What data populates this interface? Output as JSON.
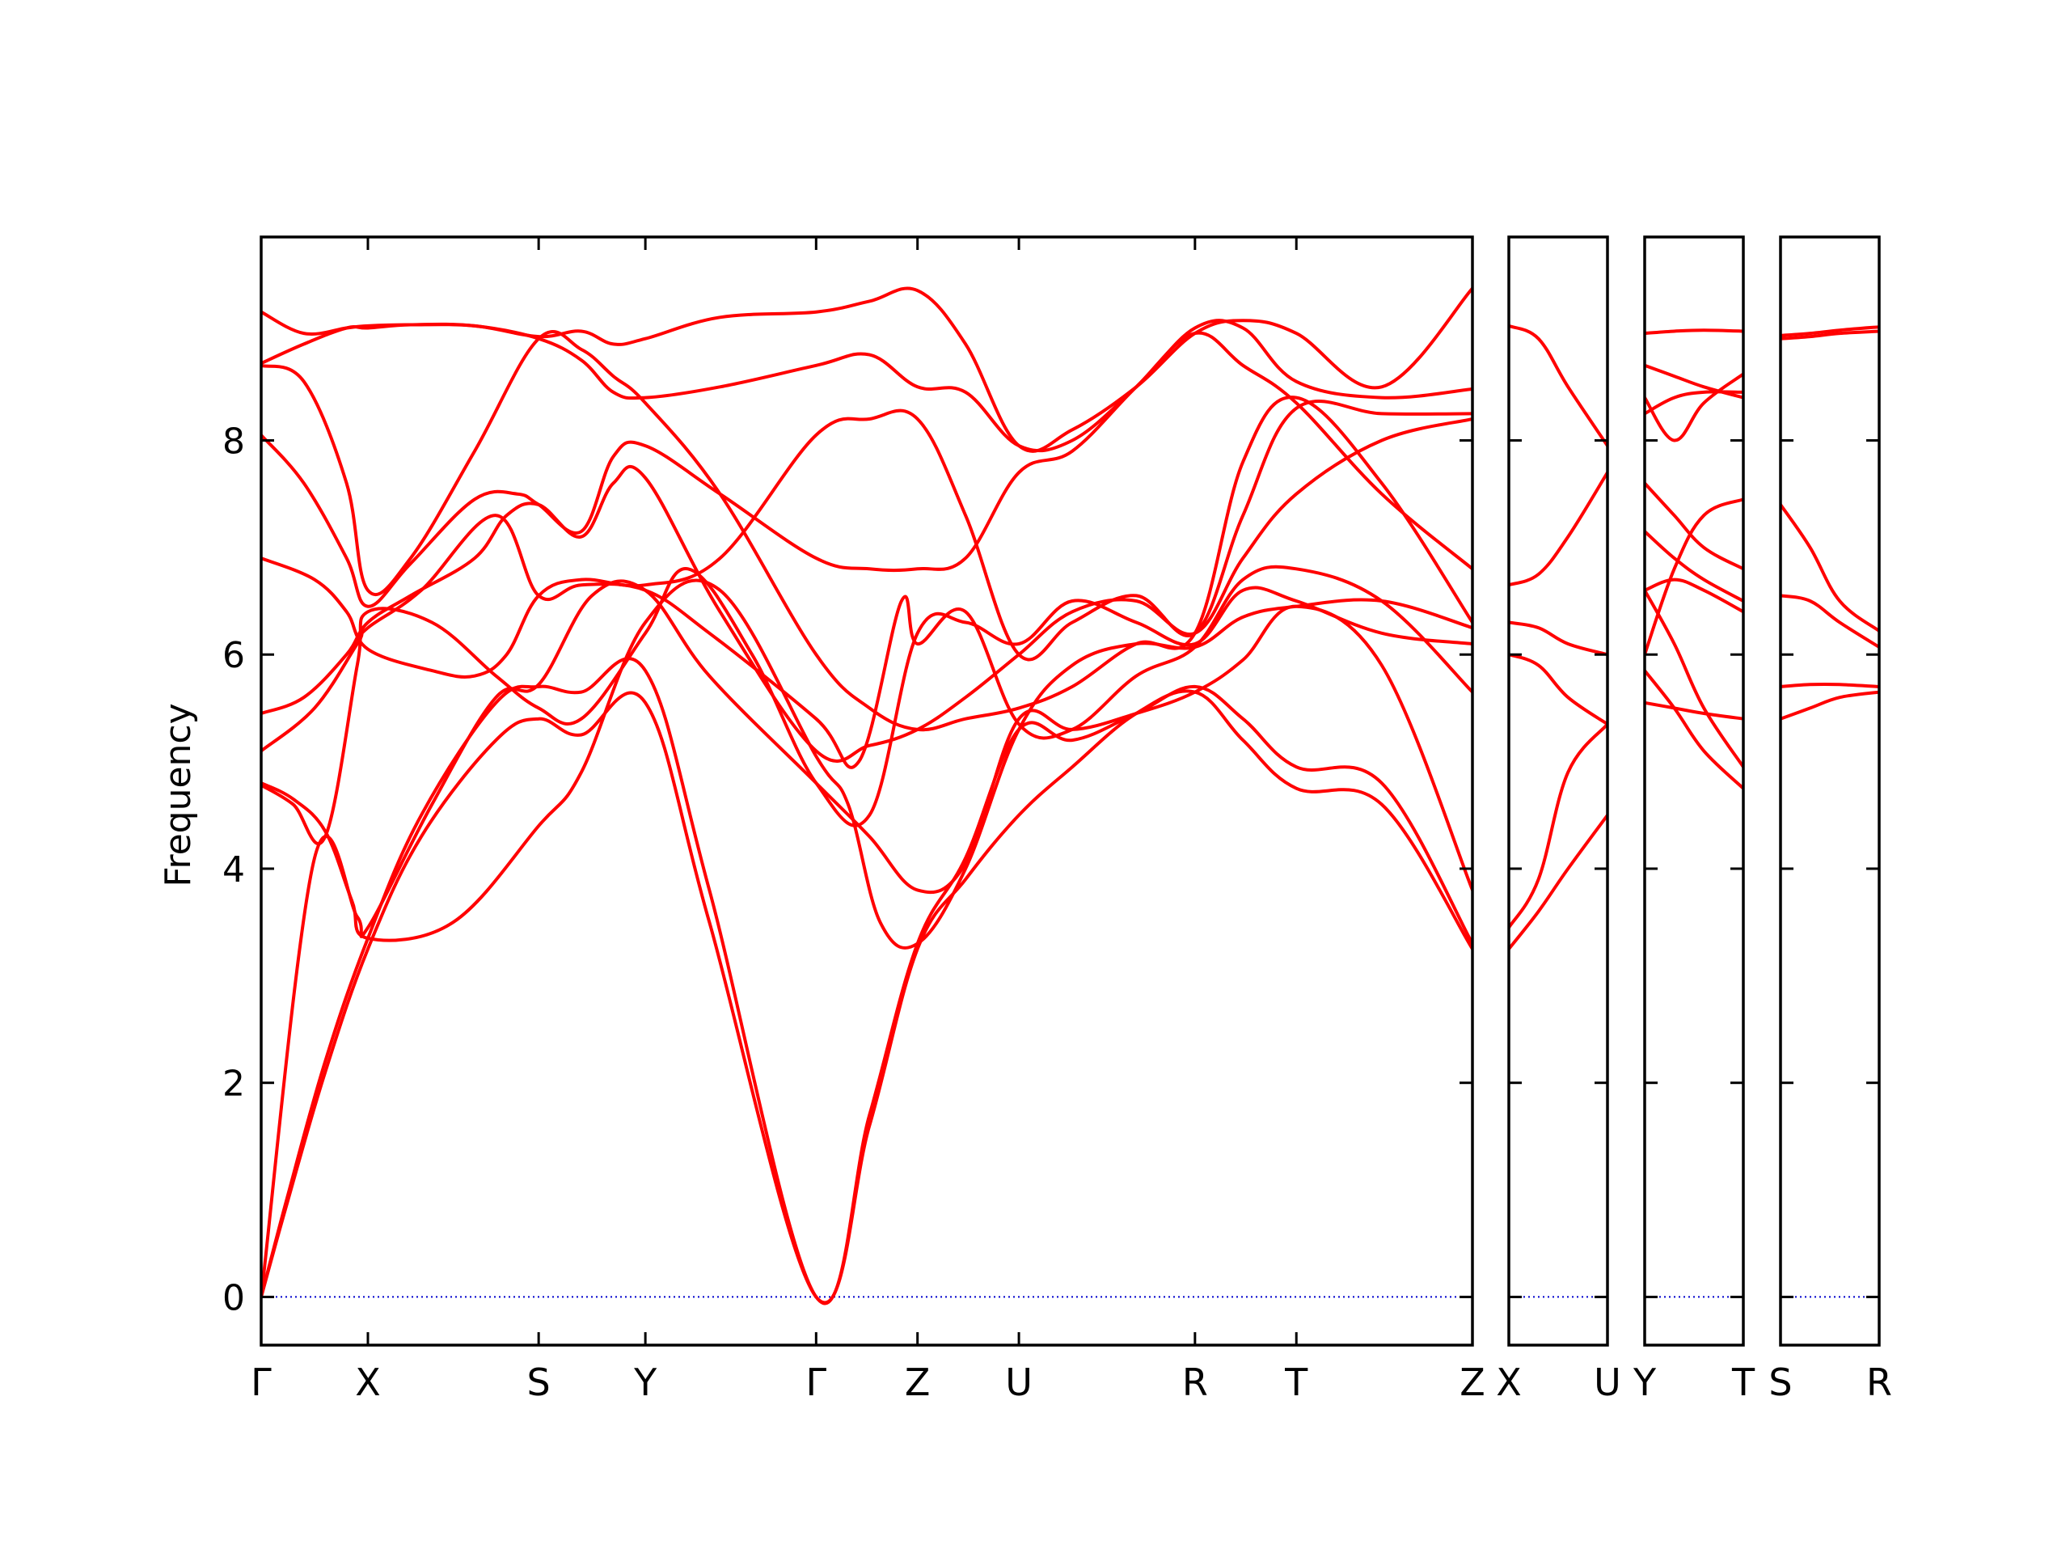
{
  "chart_data": {
    "type": "line",
    "title": "",
    "xlabel": "",
    "ylabel": "Frequency",
    "ylim": [
      -0.45,
      9.9
    ],
    "yticks": [
      0,
      2,
      4,
      6,
      8
    ],
    "line_color": "#ff0000",
    "zero_line_color": "#0000cc",
    "panels": [
      {
        "kpoints": [
          "Γ",
          "X",
          "S",
          "Y",
          "Γ",
          "Z",
          "U",
          "R",
          "T",
          "Z"
        ],
        "kpoint_positions": [
          0,
          1,
          2.6,
          3.6,
          5.2,
          6.15,
          7.1,
          8.75,
          9.7,
          11.35
        ],
        "branches": [
          {
            "x": [
              0,
              0.25,
              0.6,
              1,
              1.5,
              2.2,
              2.6,
              3,
              3.6,
              4.2,
              5.2,
              5.7,
              6.15,
              6.6,
              7.1,
              7.6,
              8.2,
              8.75,
              9.2,
              9.7,
              10.5,
              11.35
            ],
            "y": [
              0,
              0.9,
              2.1,
              3.25,
              4.3,
              5.2,
              5.4,
              5.25,
              5.55,
              3.5,
              0,
              1.6,
              3.25,
              3.9,
              4.5,
              4.95,
              5.45,
              5.65,
              5.2,
              4.75,
              4.6,
              3.25
            ]
          },
          {
            "x": [
              0,
              0.25,
              0.6,
              1,
              1.5,
              2.2,
              2.6,
              3,
              3.6,
              4.2,
              5.2,
              5.7,
              6.15,
              6.6,
              7.1,
              7.6,
              8.2,
              8.75,
              9.2,
              9.7,
              10.5,
              11.35
            ],
            "y": [
              0,
              0.95,
              2.2,
              3.35,
              4.5,
              5.55,
              5.7,
              5.65,
              5.85,
              3.8,
              0,
              1.7,
              3.3,
              4.1,
              5.3,
              5.2,
              5.45,
              5.7,
              5.4,
              4.95,
              4.8,
              3.3
            ]
          },
          {
            "x": [
              0,
              0.5,
              0.9,
              1,
              1.6,
              2.2,
              2.6,
              3.1,
              3.6,
              4.2,
              5.2,
              5.7,
              6.15,
              6.6,
              7.1,
              7.6,
              8.2,
              8.75,
              9.2,
              9.7,
              10.5,
              11.35
            ],
            "y": [
              0,
              4.1,
              3.55,
              3.45,
              4.6,
              5.6,
              5.72,
              6.55,
              6.6,
              5.8,
              4.8,
              4.3,
              3.8,
              4.05,
              5.4,
              5.3,
              5.45,
              5.65,
              5.95,
              6.45,
              5.9,
              3.8
            ]
          },
          {
            "x": [
              0,
              0.3,
              0.6,
              0.85,
              1,
              1.8,
              2.6,
              3.0,
              3.6,
              4.3,
              5.2,
              5.5,
              5.8,
              6.15,
              6.6,
              7.1,
              7.6,
              8.2,
              8.75,
              9.2,
              9.7,
              10.5,
              11.35
            ],
            "y": [
              4.8,
              4.65,
              4.35,
              3.7,
              3.35,
              3.5,
              4.4,
              4.9,
              6.3,
              6.6,
              5.05,
              4.6,
              3.5,
              3.3,
              4.0,
              5.3,
              5.9,
              6.1,
              6.07,
              6.35,
              6.45,
              6.5,
              6.25
            ]
          },
          {
            "x": [
              0,
              0.3,
              0.6,
              0.9,
              1,
              1.6,
              2.2,
              2.6,
              3.0,
              3.6,
              4.0,
              4.6,
              5.2,
              5.7,
              6.15,
              6.6,
              7.1,
              7.6,
              8.2,
              8.75,
              9.2,
              9.7,
              10.5,
              11.35
            ],
            "y": [
              4.78,
              4.6,
              4.3,
              5.9,
              6.4,
              6.3,
              5.8,
              5.5,
              5.4,
              6.2,
              6.8,
              6.0,
              4.8,
              4.5,
              6.2,
              6.3,
              6.1,
              6.5,
              6.3,
              6.1,
              6.6,
              6.5,
              6.2,
              6.1
            ]
          },
          {
            "x": [
              0,
              0.5,
              0.9,
              1,
              1.5,
              2.2,
              2.6,
              3.0,
              3.6,
              4.2,
              5.2,
              5.6,
              6.0,
              6.15,
              6.6,
              7.1,
              7.6,
              8.2,
              8.75,
              9.2,
              9.7,
              10.5,
              11.35
            ],
            "y": [
              5.1,
              5.5,
              6.1,
              6.25,
              6.6,
              7.3,
              6.55,
              6.65,
              6.6,
              6.2,
              5.4,
              5.0,
              6.5,
              6.1,
              6.4,
              5.35,
              5.3,
              5.8,
              6.07,
              6.7,
              6.8,
              6.5,
              5.65
            ]
          },
          {
            "x": [
              0,
              0.4,
              0.8,
              1,
              1.4,
              2.0,
              2.3,
              2.6,
              3.0,
              3.3,
              3.6,
              4.3,
              5.2,
              5.7,
              6.15,
              6.6,
              7.1,
              7.6,
              8.2,
              8.75,
              9.2,
              9.7,
              10.5,
              11.35
            ],
            "y": [
              5.45,
              5.6,
              6.0,
              6.3,
              6.55,
              6.9,
              7.3,
              7.4,
              7.1,
              7.6,
              7.65,
              6.4,
              5.1,
              5.15,
              5.3,
              5.6,
              6.0,
              6.4,
              6.5,
              6.2,
              6.9,
              7.5,
              8.0,
              8.2
            ]
          },
          {
            "x": [
              0,
              0.5,
              0.8,
              1,
              1.6,
              2.0,
              2.3,
              2.6,
              3.0,
              3.6,
              4.3,
              5.2,
              5.7,
              6.15,
              6.6,
              7.1,
              7.6,
              8.2,
              8.75,
              9.2,
              9.7,
              10.5,
              11.35
            ],
            "y": [
              6.9,
              6.7,
              6.4,
              6.05,
              5.85,
              5.8,
              6.0,
              6.55,
              6.7,
              6.65,
              6.9,
              8.05,
              8.2,
              8.2,
              7.3,
              6.0,
              6.3,
              6.55,
              6.2,
              7.3,
              8.3,
              8.25,
              8.25
            ]
          },
          {
            "x": [
              0,
              0.4,
              0.8,
              1,
              1.4,
              2.0,
              2.4,
              2.6,
              3.0,
              3.3,
              3.6,
              4.3,
              5.2,
              5.7,
              6.15,
              6.6,
              7.1,
              7.6,
              8.2,
              8.75,
              9.2,
              9.7,
              10.5,
              11.35
            ],
            "y": [
              8.05,
              7.6,
              6.9,
              6.45,
              6.85,
              7.45,
              7.5,
              7.4,
              7.15,
              7.85,
              7.95,
              7.5,
              6.9,
              6.8,
              6.8,
              6.9,
              7.7,
              7.9,
              8.5,
              9.0,
              8.7,
              8.35,
              7.5,
              6.8
            ]
          },
          {
            "x": [
              0,
              0.4,
              0.8,
              1,
              1.4,
              2.0,
              2.6,
              3.0,
              3.3,
              3.6,
              4.3,
              5.2,
              5.7,
              6.15,
              6.6,
              7.1,
              7.6,
              8.2,
              8.75,
              9.2,
              9.7,
              10.5,
              11.35
            ],
            "y": [
              8.7,
              8.55,
              7.6,
              6.6,
              6.9,
              7.9,
              8.95,
              8.85,
              8.6,
              8.35,
              7.5,
              6.0,
              5.5,
              5.3,
              5.4,
              5.5,
              5.7,
              6.1,
              6.2,
              7.8,
              8.4,
              7.6,
              6.3
            ]
          },
          {
            "x": [
              0,
              0.4,
              0.8,
              1,
              1.4,
              2.0,
              2.6,
              3.0,
              3.3,
              3.6,
              4.3,
              5.2,
              5.7,
              6.15,
              6.6,
              7.1,
              7.6,
              8.2,
              8.75,
              9.2,
              9.7,
              10.5,
              11.35
            ],
            "y": [
              8.72,
              8.9,
              9.05,
              9.05,
              9.08,
              9.07,
              8.95,
              8.75,
              8.45,
              8.4,
              8.5,
              8.7,
              8.8,
              8.5,
              8.45,
              7.95,
              8.0,
              8.5,
              9.05,
              9.05,
              8.55,
              8.4,
              8.48
            ]
          },
          {
            "x": [
              0,
              0.4,
              0.8,
              1,
              1.4,
              2.0,
              2.6,
              3.0,
              3.3,
              3.6,
              4.3,
              5.2,
              5.7,
              6.15,
              6.6,
              7.1,
              7.6,
              8.2,
              8.75,
              9.2,
              9.7,
              10.5,
              11.35
            ],
            "y": [
              9.2,
              9.0,
              9.05,
              9.07,
              9.08,
              9.07,
              8.97,
              9.02,
              8.9,
              8.95,
              9.15,
              9.2,
              9.3,
              9.4,
              8.9,
              7.95,
              8.1,
              8.5,
              9.0,
              9.12,
              9.0,
              8.5,
              9.42
            ]
          }
        ]
      },
      {
        "kpoints": [
          "X",
          "U"
        ],
        "kpoint_positions": [
          0,
          1
        ],
        "branches": [
          {
            "x": [
              0,
              0.3,
              0.6,
              1
            ],
            "y": [
              3.25,
              3.6,
              4.0,
              4.5
            ]
          },
          {
            "x": [
              0,
              0.3,
              0.6,
              1
            ],
            "y": [
              3.45,
              3.9,
              4.9,
              5.35
            ]
          },
          {
            "x": [
              0,
              0.3,
              0.6,
              1
            ],
            "y": [
              6.0,
              5.9,
              5.6,
              5.35
            ]
          },
          {
            "x": [
              0,
              0.3,
              0.6,
              1
            ],
            "y": [
              6.3,
              6.25,
              6.1,
              6.0
            ]
          },
          {
            "x": [
              0,
              0.3,
              0.6,
              1
            ],
            "y": [
              6.65,
              6.75,
              7.1,
              7.7
            ]
          },
          {
            "x": [
              0,
              0.3,
              0.6,
              1
            ],
            "y": [
              9.07,
              8.95,
              8.5,
              7.95
            ]
          }
        ]
      },
      {
        "kpoints": [
          "Y",
          "T"
        ],
        "kpoint_positions": [
          0,
          1
        ],
        "branches": [
          {
            "x": [
              0,
              0.3,
              0.6,
              1
            ],
            "y": [
              5.55,
              5.5,
              5.45,
              5.4
            ]
          },
          {
            "x": [
              0,
              0.3,
              0.6,
              1
            ],
            "y": [
              5.85,
              5.5,
              5.1,
              4.75
            ]
          },
          {
            "x": [
              0,
              0.3,
              0.6,
              1
            ],
            "y": [
              6.6,
              6.1,
              5.5,
              4.95
            ]
          },
          {
            "x": [
              0,
              0.3,
              0.6,
              1
            ],
            "y": [
              6.6,
              6.7,
              6.6,
              6.4
            ]
          },
          {
            "x": [
              0,
              0.3,
              0.6,
              1
            ],
            "y": [
              7.15,
              6.9,
              6.7,
              6.5
            ]
          },
          {
            "x": [
              0,
              0.3,
              0.6,
              1
            ],
            "y": [
              7.6,
              7.3,
              7.0,
              6.8
            ]
          },
          {
            "x": [
              0,
              0.3,
              0.6,
              1
            ],
            "y": [
              6.0,
              6.8,
              7.3,
              7.45
            ]
          },
          {
            "x": [
              0,
              0.3,
              0.6,
              1
            ],
            "y": [
              8.25,
              8.4,
              8.45,
              8.45
            ]
          },
          {
            "x": [
              0,
              0.3,
              0.6,
              1
            ],
            "y": [
              8.4,
              8.0,
              8.35,
              8.62
            ]
          },
          {
            "x": [
              0,
              0.3,
              0.6,
              1
            ],
            "y": [
              8.7,
              8.6,
              8.5,
              8.4
            ]
          },
          {
            "x": [
              0,
              0.3,
              0.6,
              1
            ],
            "y": [
              9.0,
              9.02,
              9.03,
              9.02
            ]
          }
        ]
      },
      {
        "kpoints": [
          "S",
          "R"
        ],
        "kpoint_positions": [
          0,
          1
        ],
        "branches": [
          {
            "x": [
              0,
              0.3,
              0.6,
              1
            ],
            "y": [
              5.4,
              5.5,
              5.6,
              5.65
            ]
          },
          {
            "x": [
              0,
              0.3,
              0.6,
              1
            ],
            "y": [
              5.7,
              5.72,
              5.72,
              5.7
            ]
          },
          {
            "x": [
              0,
              0.3,
              0.6,
              1
            ],
            "y": [
              6.55,
              6.5,
              6.3,
              6.07
            ]
          },
          {
            "x": [
              0,
              0.3,
              0.6,
              1
            ],
            "y": [
              7.4,
              7.0,
              6.5,
              6.22
            ]
          },
          {
            "x": [
              0,
              0.3,
              0.6,
              1
            ],
            "y": [
              8.95,
              8.97,
              9.0,
              9.02
            ]
          },
          {
            "x": [
              0,
              0.3,
              0.6,
              1
            ],
            "y": [
              8.98,
              9.0,
              9.03,
              9.06
            ]
          }
        ]
      }
    ]
  }
}
